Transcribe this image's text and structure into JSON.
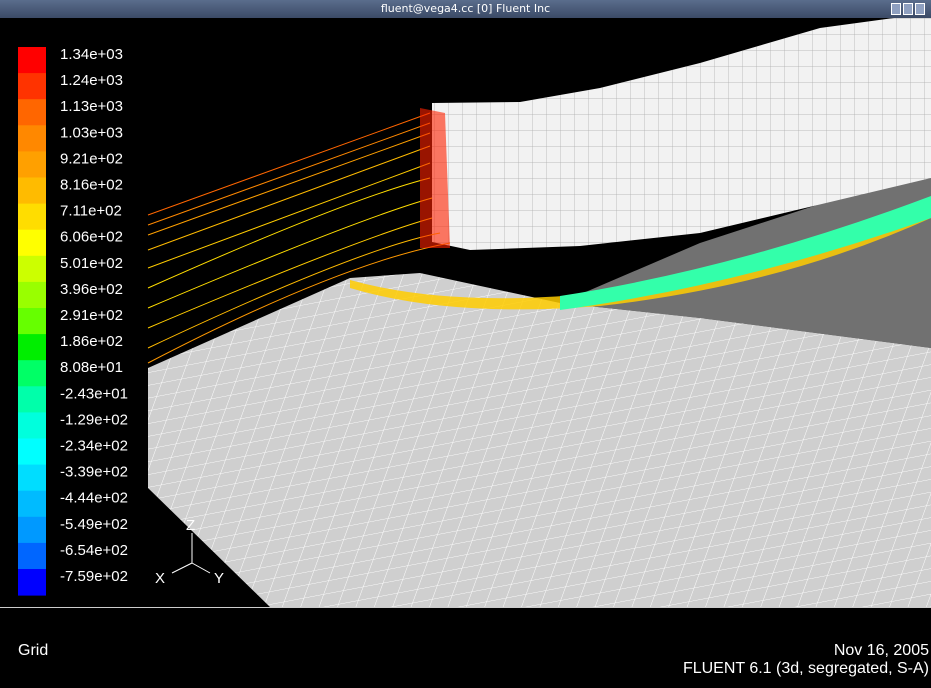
{
  "window": {
    "title": "fluent@vega4.cc [0] Fluent Inc"
  },
  "colorbar": {
    "levels": [
      {
        "label": "1.34e+03",
        "color": "#ff0000"
      },
      {
        "label": "1.24e+03",
        "color": "#ff3300"
      },
      {
        "label": "1.13e+03",
        "color": "#ff6600"
      },
      {
        "label": "1.03e+03",
        "color": "#ff8800"
      },
      {
        "label": "9.21e+02",
        "color": "#ffa000"
      },
      {
        "label": "8.16e+02",
        "color": "#ffbb00"
      },
      {
        "label": "7.11e+02",
        "color": "#ffdd00"
      },
      {
        "label": "6.06e+02",
        "color": "#ffff00"
      },
      {
        "label": "5.01e+02",
        "color": "#ccff00"
      },
      {
        "label": "3.96e+02",
        "color": "#99ff00"
      },
      {
        "label": "2.91e+02",
        "color": "#66ff00"
      },
      {
        "label": "1.86e+02",
        "color": "#00ee00"
      },
      {
        "label": "8.08e+01",
        "color": "#00ff66"
      },
      {
        "label": "-2.43e+01",
        "color": "#00ffaa"
      },
      {
        "label": "-1.29e+02",
        "color": "#00ffdd"
      },
      {
        "label": "-2.34e+02",
        "color": "#00ffff"
      },
      {
        "label": "-3.39e+02",
        "color": "#00ddff"
      },
      {
        "label": "-4.44e+02",
        "color": "#00bbff"
      },
      {
        "label": "-5.49e+02",
        "color": "#0099ff"
      },
      {
        "label": "-6.54e+02",
        "color": "#0066ff"
      },
      {
        "label": "-7.59e+02",
        "color": "#0000ff"
      }
    ]
  },
  "axes": {
    "z": "Z",
    "x": "X",
    "y": "Y"
  },
  "footer": {
    "left": "Grid",
    "date": "Nov 16, 2005",
    "version": "FLUENT 6.1 (3d, segregated, S-A)"
  }
}
